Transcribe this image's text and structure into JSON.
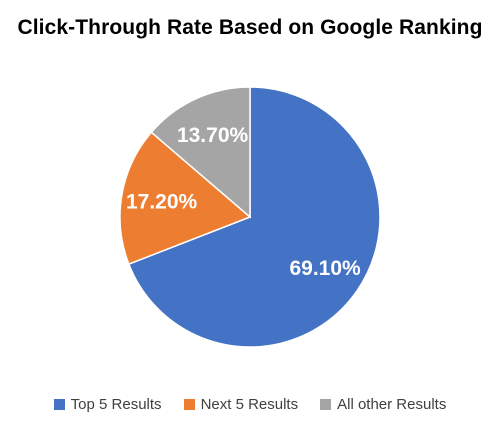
{
  "chart_data": {
    "type": "pie",
    "title": "Click-Through Rate Based on Google Ranking",
    "categories": [
      "Top 5 Results",
      "Next 5 Results",
      "All other Results"
    ],
    "values": [
      69.1,
      17.2,
      13.7
    ],
    "data_labels": [
      "69.10%",
      "17.20%",
      "13.70%"
    ],
    "colors": [
      "#4472C4",
      "#ED7D31",
      "#A5A5A5"
    ],
    "start_angle_deg": 0,
    "direction": "clockwise",
    "legend_position": "bottom"
  }
}
